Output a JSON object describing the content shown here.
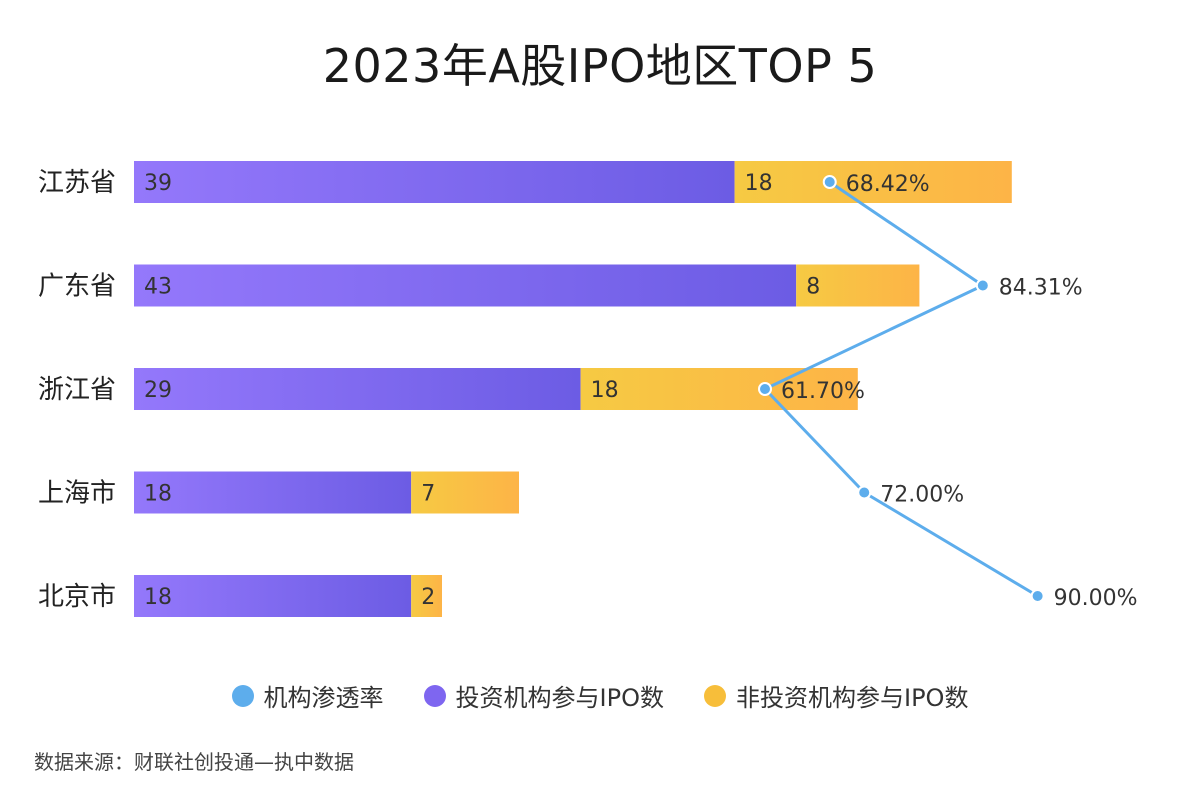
{
  "title": "2023年A股IPO地区TOP 5",
  "source": "数据来源：财联社创投通—执中数据",
  "legend": [
    {
      "label": "机构渗透率",
      "color": "#5DADEC"
    },
    {
      "label": "投资机构参与IPO数",
      "color": "#7E66F0"
    },
    {
      "label": "非投资机构参与IPO数",
      "color": "#F7BE3A"
    }
  ],
  "chart_data": {
    "type": "bar",
    "orientation": "horizontal",
    "stacked": true,
    "categories": [
      "江苏省",
      "广东省",
      "浙江省",
      "上海市",
      "北京市"
    ],
    "series": [
      {
        "name": "投资机构参与IPO数",
        "values": [
          39,
          43,
          29,
          18,
          18
        ],
        "color": "#7E66F0"
      },
      {
        "name": "非投资机构参与IPO数",
        "values": [
          18,
          8,
          18,
          7,
          2
        ],
        "color": "#F7BE3A"
      }
    ],
    "line_series": {
      "name": "机构渗透率",
      "values": [
        68.42,
        84.31,
        61.7,
        72.0,
        90.0
      ],
      "labels": [
        "68.42%",
        "84.31%",
        "61.70%",
        "72.00%",
        "90.00%"
      ],
      "color": "#5DADEC"
    },
    "title": "2023年A股IPO地区TOP 5",
    "legend_position": "bottom",
    "grid": false
  }
}
